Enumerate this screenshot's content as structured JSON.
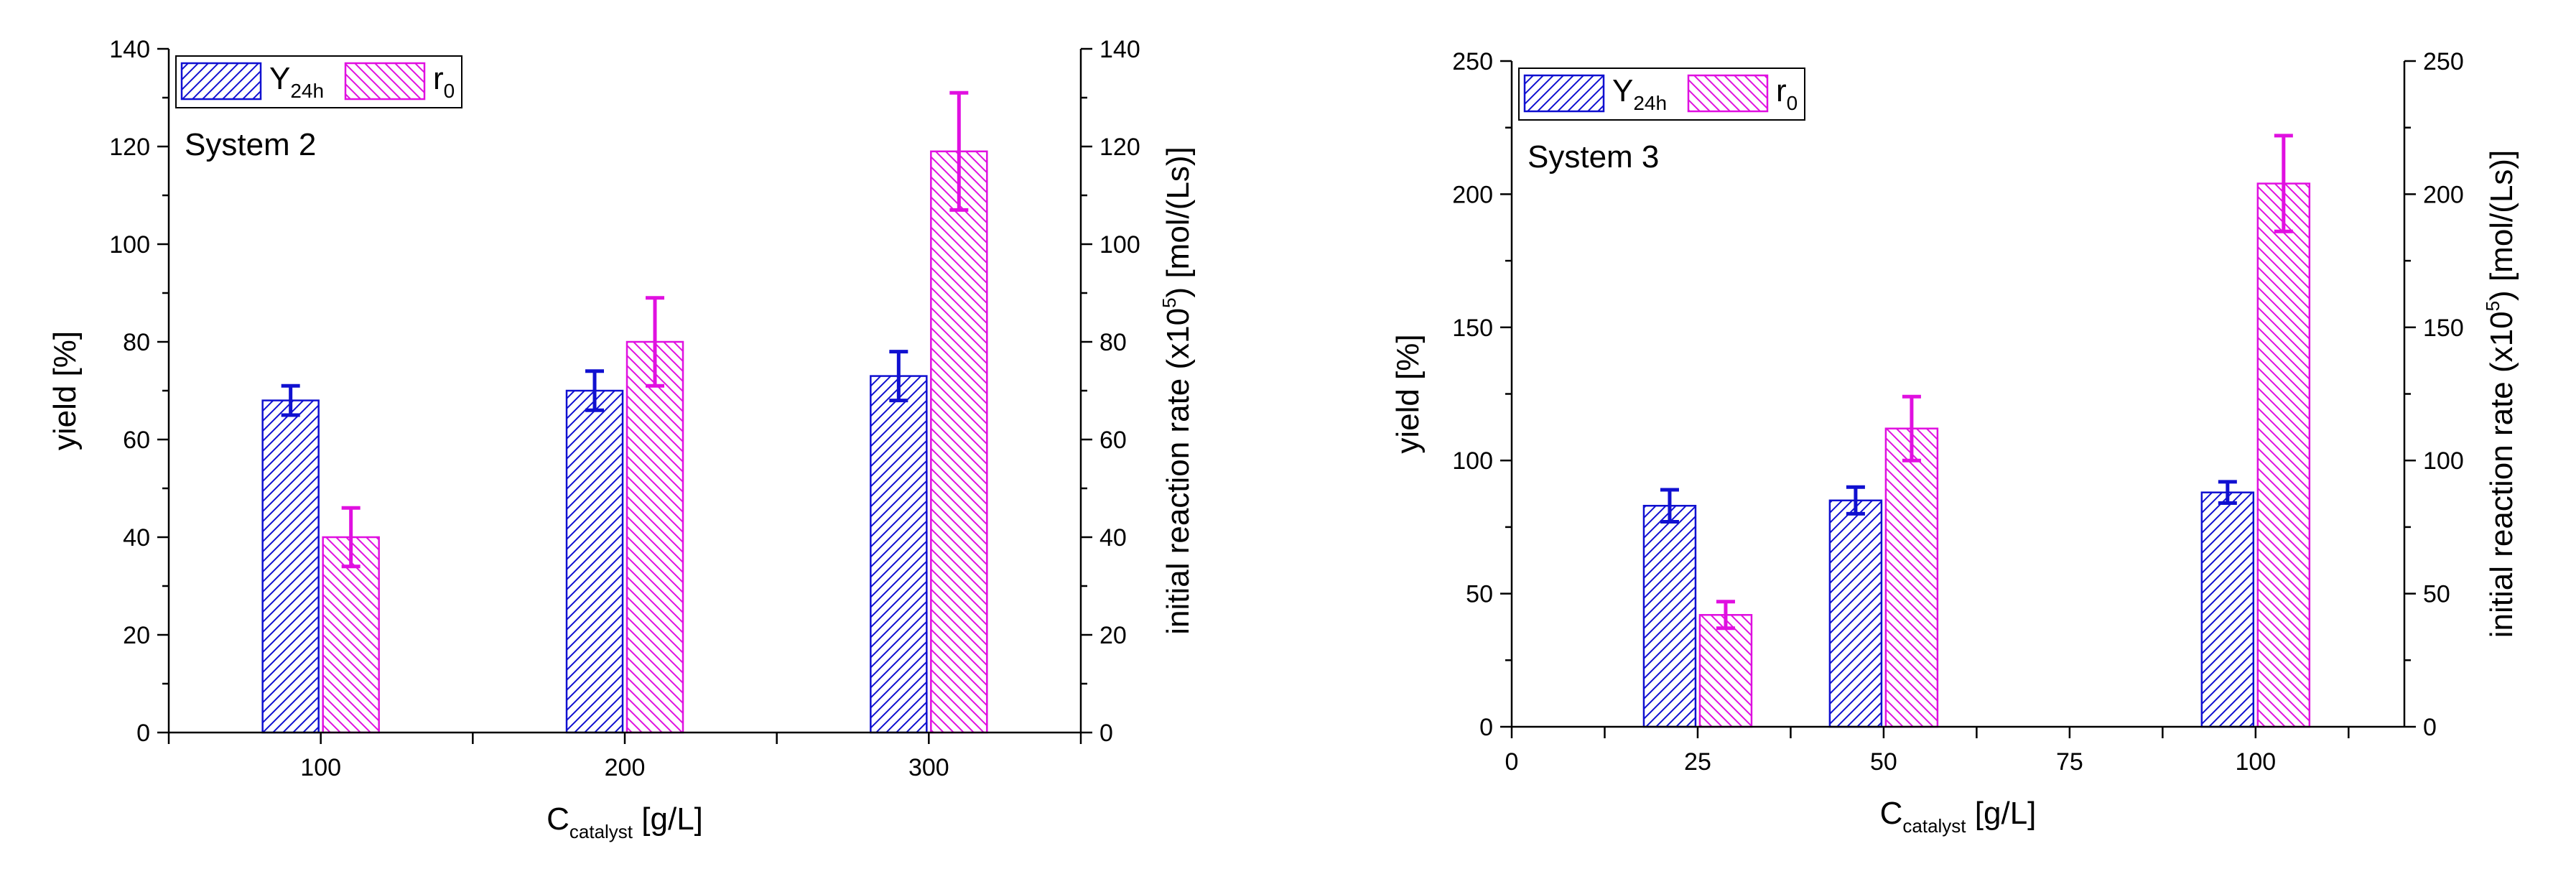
{
  "colors": {
    "y24h": "#1010d0",
    "r0": "#e010e0"
  },
  "chart_data": [
    {
      "type": "bar",
      "annotation": "System 2",
      "categories": [
        "100",
        "200",
        "300"
      ],
      "x_values": [
        100,
        200,
        300
      ],
      "xlim": [
        50,
        350
      ],
      "x_ticks": [
        100,
        200,
        300
      ],
      "x_minor_ticks": [
        50,
        150,
        250,
        350
      ],
      "xlabel": {
        "main": "C",
        "sub": "catalyst",
        "rest": " [g/L]"
      },
      "ylabel": "yield [%]",
      "ylabel_right": {
        "pre": "initial reaction rate (x10",
        "sup": "5",
        "post": ") [mol/(Ls)]"
      },
      "ylim": [
        0,
        140
      ],
      "y_ticks": [
        0,
        20,
        40,
        60,
        80,
        100,
        120,
        140
      ],
      "ylim_right": [
        0,
        140
      ],
      "y_ticks_right": [
        0,
        20,
        40,
        60,
        80,
        100,
        120,
        140
      ],
      "series": [
        {
          "name": "Y",
          "sub": "24h",
          "color_key": "y24h",
          "axis": "left",
          "values": [
            68,
            70,
            73
          ],
          "errors": [
            3,
            4,
            5
          ]
        },
        {
          "name": "r",
          "sub": "0",
          "color_key": "r0",
          "axis": "right",
          "values": [
            40,
            80,
            119
          ],
          "errors": [
            6,
            9,
            12
          ]
        }
      ],
      "legend": "top-left"
    },
    {
      "type": "bar",
      "annotation": "System 3",
      "categories": [
        "25",
        "50",
        "100"
      ],
      "x_values": [
        25,
        50,
        100
      ],
      "xlim": [
        0,
        120
      ],
      "x_ticks": [
        0,
        25,
        50,
        75,
        100
      ],
      "x_minor_ticks": [
        12.5,
        37.5,
        62.5,
        87.5,
        112.5
      ],
      "xlabel": {
        "main": "C",
        "sub": "catalyst",
        "rest": " [g/L]"
      },
      "ylabel": "yield [%]",
      "ylabel_right": {
        "pre": "initial reaction rate (x10",
        "sup": "5",
        "post": ") [mol/(Ls)]"
      },
      "ylim": [
        0,
        250
      ],
      "y_ticks": [
        0,
        50,
        100,
        150,
        200,
        250
      ],
      "ylim_right": [
        0,
        250
      ],
      "y_ticks_right": [
        0,
        50,
        100,
        150,
        200,
        250
      ],
      "series": [
        {
          "name": "Y",
          "sub": "24h",
          "color_key": "y24h",
          "axis": "left",
          "values": [
            83,
            85,
            88
          ],
          "errors": [
            6,
            5,
            4
          ]
        },
        {
          "name": "r",
          "sub": "0",
          "color_key": "r0",
          "axis": "right",
          "values": [
            42,
            112,
            204
          ],
          "errors": [
            5,
            12,
            18
          ]
        }
      ],
      "legend": "top-left"
    }
  ]
}
